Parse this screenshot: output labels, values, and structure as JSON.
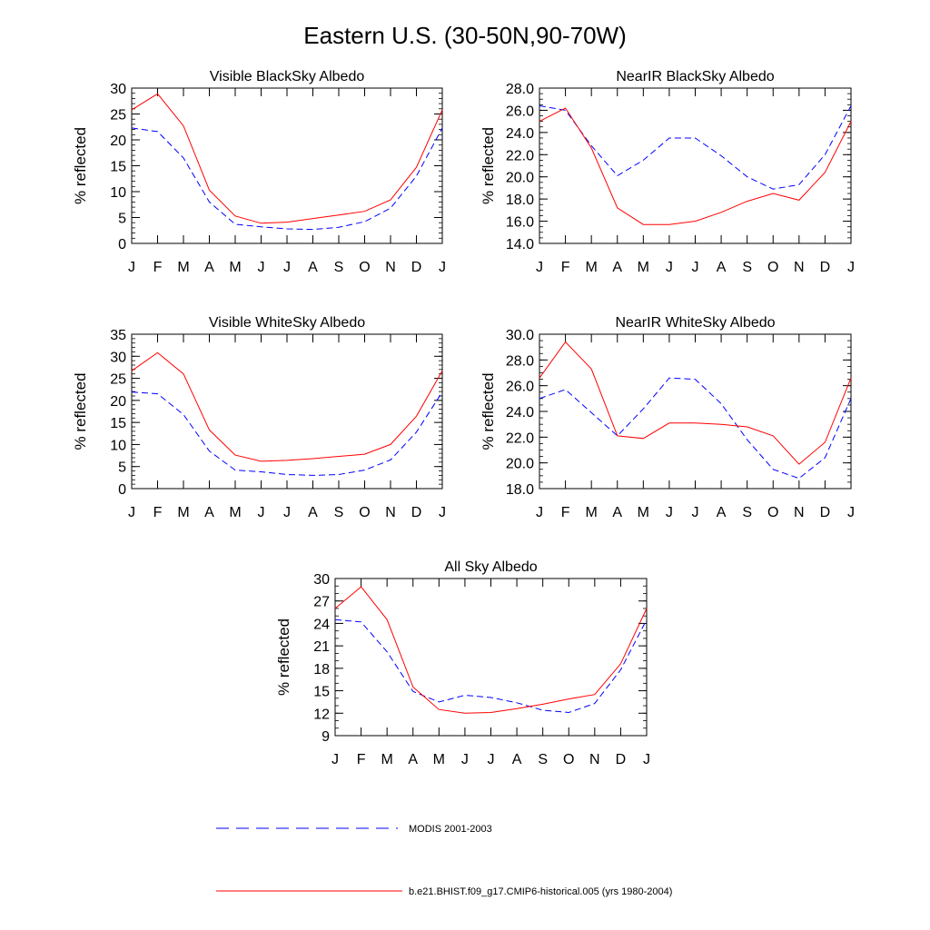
{
  "figure": {
    "title": "Eastern U.S. (30-50N,90-70W)"
  },
  "legend": {
    "modis_label": "MODIS 2001-2003",
    "model_label": "b.e21.BHIST.f09_g17.CMIP6-historical.005 (yrs 1980-2004)",
    "modis_color": "#0000ff",
    "model_color": "#ff0000"
  },
  "chart_data": [
    {
      "type": "line",
      "title": "Visible BlackSky Albedo",
      "ylabel": "% reflected",
      "xlabel": "",
      "categories": [
        "J",
        "F",
        "M",
        "A",
        "M",
        "J",
        "J",
        "A",
        "S",
        "O",
        "N",
        "D",
        "J"
      ],
      "ylim": [
        0,
        30
      ],
      "yticks": [
        0,
        5,
        10,
        15,
        20,
        25,
        30
      ],
      "ytick_labels": [
        "0",
        "5",
        "10",
        "15",
        "20",
        "25",
        "30"
      ],
      "minor_step": 1,
      "series": [
        {
          "name": "MODIS 2001-2003",
          "style": "dashed",
          "color": "#0000ff",
          "values": [
            22.3,
            21.6,
            16.5,
            8.0,
            3.7,
            3.2,
            2.8,
            2.7,
            3.1,
            4.2,
            6.8,
            13.0,
            22.3
          ]
        },
        {
          "name": "b.e21.BHIST.f09_g17.CMIP6-historical.005 (yrs 1980-2004)",
          "style": "solid",
          "color": "#ff0000",
          "values": [
            25.8,
            28.9,
            22.7,
            10.3,
            5.3,
            3.9,
            4.1,
            4.8,
            5.5,
            6.2,
            8.4,
            14.7,
            25.8
          ]
        }
      ]
    },
    {
      "type": "line",
      "title": "NearIR BlackSky Albedo",
      "ylabel": "% reflected",
      "xlabel": "",
      "categories": [
        "J",
        "F",
        "M",
        "A",
        "M",
        "J",
        "J",
        "A",
        "S",
        "O",
        "N",
        "D",
        "J"
      ],
      "ylim": [
        14,
        28
      ],
      "yticks": [
        14,
        16,
        18,
        20,
        22,
        24,
        26,
        28
      ],
      "ytick_labels": [
        "14.0",
        "16.0",
        "18.0",
        "20.0",
        "22.0",
        "24.0",
        "26.0",
        "28.0"
      ],
      "minor_step": 0.5,
      "series": [
        {
          "name": "MODIS 2001-2003",
          "style": "dashed",
          "color": "#0000ff",
          "values": [
            26.4,
            26.0,
            22.8,
            20.1,
            21.5,
            23.5,
            23.5,
            21.9,
            20.0,
            18.9,
            19.3,
            22.0,
            26.4
          ]
        },
        {
          "name": "b.e21.BHIST.f09_g17.CMIP6-historical.005 (yrs 1980-2004)",
          "style": "solid",
          "color": "#ff0000",
          "values": [
            25.0,
            26.2,
            22.6,
            17.2,
            15.7,
            15.7,
            16.0,
            16.8,
            17.8,
            18.5,
            17.9,
            20.4,
            25.0
          ]
        }
      ]
    },
    {
      "type": "line",
      "title": "Visible WhiteSky Albedo",
      "ylabel": "% reflected",
      "xlabel": "",
      "categories": [
        "J",
        "F",
        "M",
        "A",
        "M",
        "J",
        "J",
        "A",
        "S",
        "O",
        "N",
        "D",
        "J"
      ],
      "ylim": [
        0,
        35
      ],
      "yticks": [
        0,
        5,
        10,
        15,
        20,
        25,
        30,
        35
      ],
      "ytick_labels": [
        "0",
        "5",
        "10",
        "15",
        "20",
        "25",
        "30",
        "35"
      ],
      "minor_step": 1,
      "series": [
        {
          "name": "MODIS 2001-2003",
          "style": "dashed",
          "color": "#0000ff",
          "values": [
            21.9,
            21.5,
            16.8,
            8.5,
            4.2,
            3.8,
            3.2,
            3.0,
            3.2,
            4.2,
            6.5,
            12.8,
            21.9
          ]
        },
        {
          "name": "b.e21.BHIST.f09_g17.CMIP6-historical.005 (yrs 1980-2004)",
          "style": "solid",
          "color": "#ff0000",
          "values": [
            26.7,
            30.8,
            26.0,
            13.3,
            7.6,
            6.2,
            6.4,
            6.8,
            7.3,
            7.8,
            10.0,
            16.4,
            26.7
          ]
        }
      ]
    },
    {
      "type": "line",
      "title": "NearIR WhiteSky Albedo",
      "ylabel": "% reflected",
      "xlabel": "",
      "categories": [
        "J",
        "F",
        "M",
        "A",
        "M",
        "J",
        "J",
        "A",
        "S",
        "O",
        "N",
        "D",
        "J"
      ],
      "ylim": [
        18,
        30
      ],
      "yticks": [
        18,
        20,
        22,
        24,
        26,
        28,
        30
      ],
      "ytick_labels": [
        "18.0",
        "20.0",
        "22.0",
        "24.0",
        "26.0",
        "28.0",
        "30.0"
      ],
      "minor_step": 0.5,
      "series": [
        {
          "name": "MODIS 2001-2003",
          "style": "dashed",
          "color": "#0000ff",
          "values": [
            25.0,
            25.7,
            23.9,
            22.1,
            24.2,
            26.6,
            26.5,
            24.6,
            21.8,
            19.5,
            18.8,
            20.4,
            25.0
          ]
        },
        {
          "name": "b.e21.BHIST.f09_g17.CMIP6-historical.005 (yrs 1980-2004)",
          "style": "solid",
          "color": "#ff0000",
          "values": [
            26.6,
            29.4,
            27.3,
            22.1,
            21.9,
            23.1,
            23.1,
            23.0,
            22.8,
            22.1,
            19.9,
            21.6,
            26.6
          ]
        }
      ]
    },
    {
      "type": "line",
      "title": "All Sky Albedo",
      "ylabel": "% reflected",
      "xlabel": "",
      "categories": [
        "J",
        "F",
        "M",
        "A",
        "M",
        "J",
        "J",
        "A",
        "S",
        "O",
        "N",
        "D",
        "J"
      ],
      "ylim": [
        9,
        30
      ],
      "yticks": [
        9,
        12,
        15,
        18,
        21,
        24,
        27,
        30
      ],
      "ytick_labels": [
        "9",
        "12",
        "15",
        "18",
        "21",
        "24",
        "27",
        "30"
      ],
      "minor_step": 1,
      "series": [
        {
          "name": "MODIS 2001-2003",
          "style": "dashed",
          "color": "#0000ff",
          "values": [
            24.5,
            24.2,
            20.2,
            14.9,
            13.5,
            14.4,
            14.1,
            13.4,
            12.4,
            12.1,
            13.3,
            17.8,
            24.5
          ]
        },
        {
          "name": "b.e21.BHIST.f09_g17.CMIP6-historical.005 (yrs 1980-2004)",
          "style": "solid",
          "color": "#ff0000",
          "values": [
            26.0,
            28.9,
            24.5,
            15.5,
            12.5,
            12.0,
            12.1,
            12.6,
            13.2,
            13.9,
            14.5,
            18.6,
            26.0
          ]
        }
      ]
    }
  ]
}
